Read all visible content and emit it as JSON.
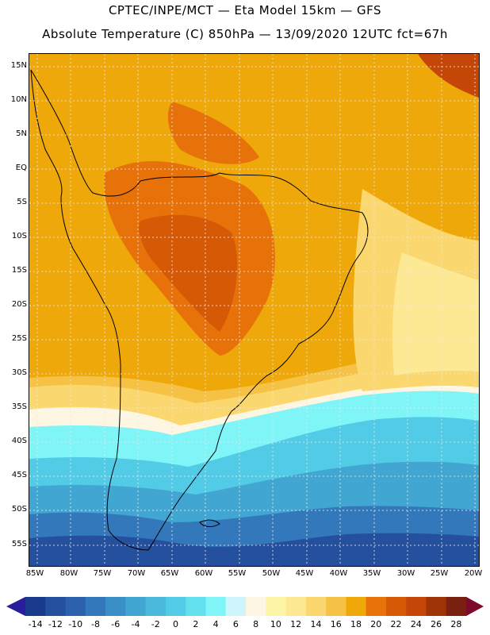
{
  "header": {
    "title_line1": "CPTEC/INPE/MCT —  Eta Model 15km — GFS",
    "title_line2": "Absolute Temperature (C) 850hPa — 13/09/2020 12UTC fct=67h"
  },
  "axes": {
    "lat_labels": [
      "15N",
      "10N",
      "5N",
      "EQ",
      "5S",
      "10S",
      "15S",
      "20S",
      "25S",
      "30S",
      "35S",
      "40S",
      "45S",
      "50S",
      "55S"
    ],
    "lon_labels": [
      "85W",
      "80W",
      "75W",
      "70W",
      "65W",
      "60W",
      "55W",
      "50W",
      "45W",
      "40W",
      "35W",
      "30W",
      "25W",
      "20W"
    ]
  },
  "colorbar": {
    "labels": [
      "-14",
      "-12",
      "-10",
      "-8",
      "-6",
      "-4",
      "-2",
      "0",
      "2",
      "4",
      "6",
      "8",
      "10",
      "12",
      "14",
      "16",
      "18",
      "20",
      "22",
      "24",
      "26",
      "28"
    ],
    "colors": [
      "#1a3a8c",
      "#24509e",
      "#2c62ad",
      "#3378ba",
      "#3a8fc6",
      "#42a6d2",
      "#4ab9dc",
      "#52cce6",
      "#62e0ee",
      "#7ff5f7",
      "#cdf5fb",
      "#fdf6e2",
      "#fdf5a6",
      "#fde994",
      "#fbd76f",
      "#f5c246",
      "#eea80a",
      "#e8720a",
      "#d65a06",
      "#c54707",
      "#9e3306",
      "#7a2010"
    ],
    "low_arrow_color": "#2a1d9c",
    "high_arrow_color": "#7d0a2a"
  },
  "colors": {
    "coast": "#000000",
    "grid": "#e7e7e7"
  }
}
